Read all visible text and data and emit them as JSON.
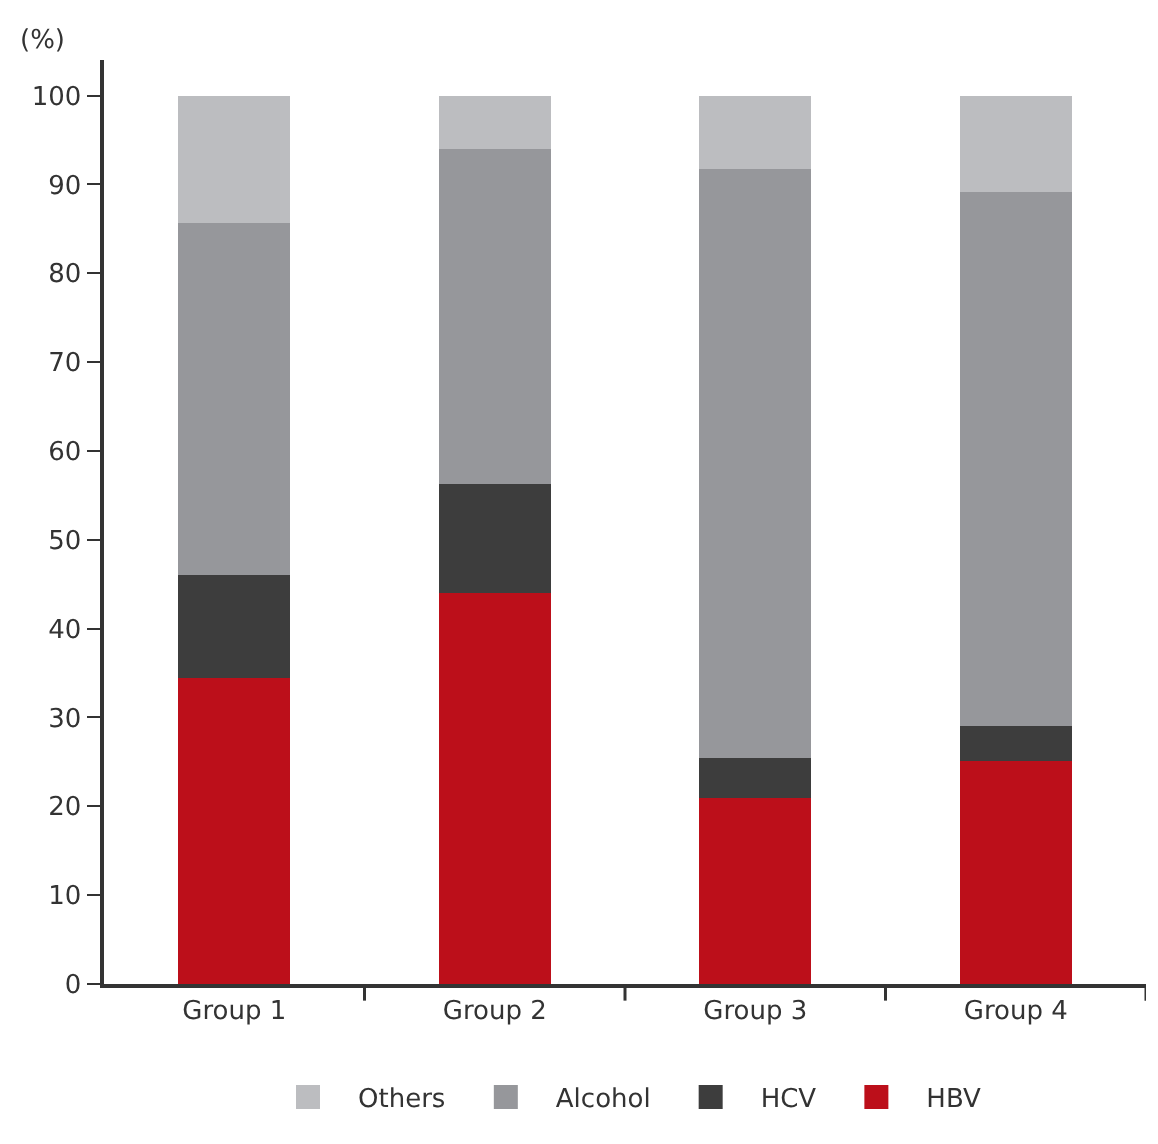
{
  "chart_data": {
    "type": "bar",
    "stacked": true,
    "ylabel": "(%)",
    "categories": [
      "Group 1",
      "Group 2",
      "Group 3",
      "Group 4"
    ],
    "series": [
      {
        "name": "HBV",
        "color": "#bc0f1a",
        "values": [
          34.4,
          44.0,
          20.9,
          25.1
        ]
      },
      {
        "name": "HCV",
        "color": "#3d3d3d",
        "values": [
          11.6,
          12.3,
          4.5,
          3.9
        ]
      },
      {
        "name": "Alcohol",
        "color": "#96979b",
        "values": [
          39.7,
          37.7,
          66.3,
          60.2
        ]
      },
      {
        "name": "Others",
        "color": "#bcbdc0",
        "values": [
          14.3,
          6.0,
          8.3,
          10.8
        ]
      }
    ],
    "ylim": [
      0,
      104
    ],
    "yticks": [
      0,
      10,
      20,
      30,
      40,
      50,
      60,
      70,
      80,
      90,
      100
    ],
    "legend": "bottom"
  }
}
